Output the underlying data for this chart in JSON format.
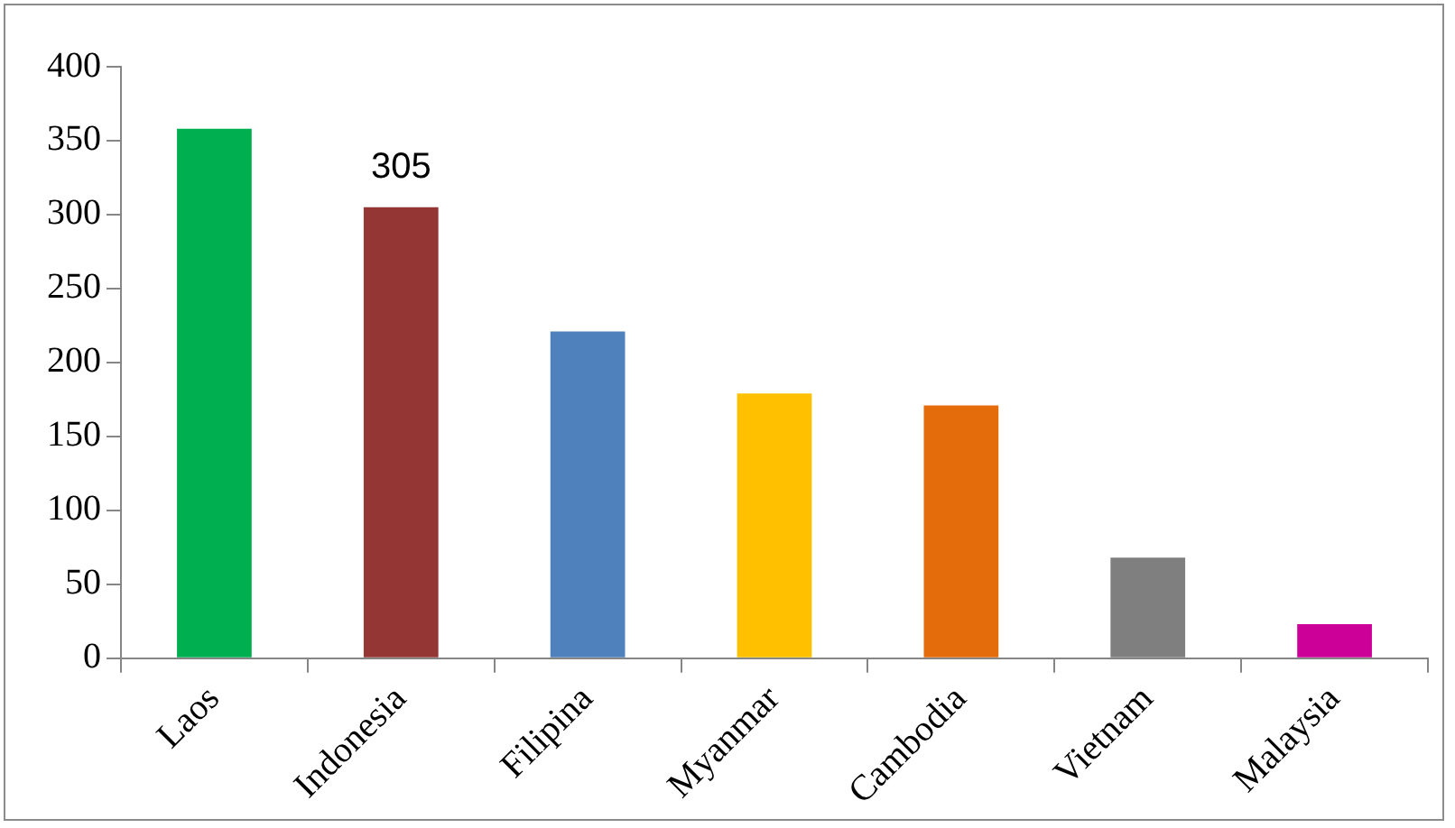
{
  "chart_data": {
    "type": "bar",
    "categories": [
      "Laos",
      "Indonesia",
      "Filipina",
      "Myanmar",
      "Cambodia",
      "Vietnam",
      "Malaysia"
    ],
    "values": [
      358,
      305,
      221,
      179,
      171,
      68,
      23
    ],
    "colors": [
      "#00b050",
      "#943634",
      "#4f81bd",
      "#ffc000",
      "#e46c0a",
      "#7f7f7f",
      "#cc0099"
    ],
    "value_labels": [
      null,
      "305",
      null,
      null,
      null,
      null,
      null
    ],
    "ylim": [
      0,
      400
    ],
    "yticks": [
      0,
      50,
      100,
      150,
      200,
      250,
      300,
      350,
      400
    ],
    "grid": false,
    "legend": false
  }
}
